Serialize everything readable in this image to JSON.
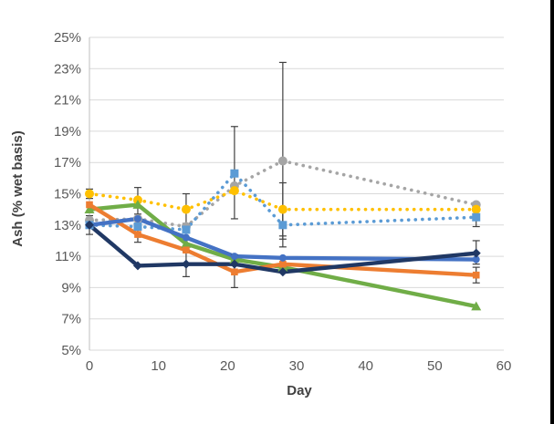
{
  "chart_data": {
    "type": "line",
    "title": "",
    "xlabel": "Day",
    "ylabel": "Ash (% wet basis)",
    "x": [
      0,
      7,
      14,
      21,
      28,
      56
    ],
    "x_axis": {
      "min": 0,
      "max": 60,
      "tick_step": 10,
      "tick_labels": [
        "0",
        "10",
        "20",
        "30",
        "40",
        "50",
        "60"
      ]
    },
    "y_axis": {
      "min": 5,
      "max": 25,
      "tick_step": 2,
      "tick_labels": [
        "5%",
        "7%",
        "9%",
        "11%",
        "13%",
        "15%",
        "17%",
        "19%",
        "21%",
        "23%",
        "25%"
      ]
    },
    "grid": true,
    "legend_position": "none",
    "series": [
      {
        "name": "gray-dotted",
        "color": "#A5A5A5",
        "line_style": "dotted",
        "marker": "circle",
        "values": [
          13.3,
          13.4,
          12.9,
          15.5,
          17.1,
          14.3
        ]
      },
      {
        "name": "yellow-dotted",
        "color": "#FFC000",
        "line_style": "dotted",
        "marker": "circle",
        "values": [
          15.0,
          14.6,
          14.0,
          15.2,
          14.0,
          14.0
        ]
      },
      {
        "name": "light-blue-dotted",
        "color": "#5B9BD5",
        "line_style": "dotted",
        "marker": "square",
        "values": [
          13.0,
          12.9,
          12.7,
          16.3,
          13.0,
          13.5
        ]
      },
      {
        "name": "green-solid",
        "color": "#70AD47",
        "line_style": "solid",
        "marker": "triangle",
        "values": [
          14.0,
          14.3,
          11.8,
          10.8,
          10.3,
          7.8
        ]
      },
      {
        "name": "orange-solid",
        "color": "#ED7D31",
        "line_style": "solid",
        "marker": "square",
        "values": [
          14.3,
          12.4,
          11.4,
          10.0,
          10.5,
          9.8
        ]
      },
      {
        "name": "blue-solid",
        "color": "#4472C4",
        "line_style": "solid",
        "marker": "circle",
        "values": [
          13.0,
          13.4,
          12.2,
          11.0,
          10.9,
          10.8
        ]
      },
      {
        "name": "dark-blue-solid",
        "color": "#203864",
        "line_style": "solid",
        "marker": "diamond",
        "values": [
          13.0,
          10.4,
          10.5,
          10.5,
          10.0,
          11.2
        ]
      }
    ],
    "error_bars": [
      {
        "x": 0,
        "low": 12.4,
        "high": 13.6
      },
      {
        "x": 0,
        "low": 14.7,
        "high": 15.3
      },
      {
        "x": 7,
        "low": 13.7,
        "high": 15.4
      },
      {
        "x": 7,
        "low": 11.9,
        "high": 12.9
      },
      {
        "x": 14,
        "low": 13.1,
        "high": 15.0
      },
      {
        "x": 14,
        "low": 9.7,
        "high": 11.3
      },
      {
        "x": 21,
        "low": 13.4,
        "high": 19.3
      },
      {
        "x": 21,
        "low": 9.0,
        "high": 11.1
      },
      {
        "x": 28,
        "low": 11.6,
        "high": 23.4
      },
      {
        "x": 28,
        "low": 12.3,
        "high": 15.7
      },
      {
        "x": 28,
        "low": 12.1,
        "high": 13.9
      },
      {
        "x": 56,
        "low": 12.9,
        "high": 14.1
      },
      {
        "x": 56,
        "low": 10.5,
        "high": 12.0
      },
      {
        "x": 56,
        "low": 9.3,
        "high": 10.3
      }
    ]
  },
  "colors": {
    "background": "#FFFFFF",
    "grid": "#D9D9D9",
    "axis": "#BFBFBF",
    "tick_text": "#595959",
    "error_bar": "#404040",
    "page_border": "#000000"
  }
}
